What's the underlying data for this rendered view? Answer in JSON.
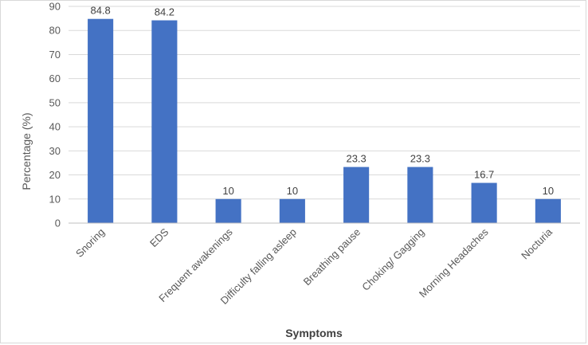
{
  "chart_data": {
    "type": "bar",
    "categories": [
      "Snoring",
      "EDS",
      "Frequent awakenings",
      "Difficulty falling asleep",
      "Breathing pause",
      "Choking/ Gagging",
      "Morning Headaches",
      "Nocturia"
    ],
    "values": [
      84.8,
      84.2,
      10,
      10,
      23.3,
      23.3,
      16.7,
      10
    ],
    "data_labels": [
      "84.8",
      "84.2",
      "10",
      "10",
      "23.3",
      "23.3",
      "16.7",
      "10"
    ],
    "xlabel": "Symptoms",
    "ylabel": "Percentage (%)",
    "ylim": [
      0,
      90
    ],
    "yticks": [
      0,
      10,
      20,
      30,
      40,
      50,
      60,
      70,
      80,
      90
    ],
    "grid": true,
    "legend": "none",
    "bar_color": "#4472C4",
    "grid_color": "#d9d9d9"
  }
}
